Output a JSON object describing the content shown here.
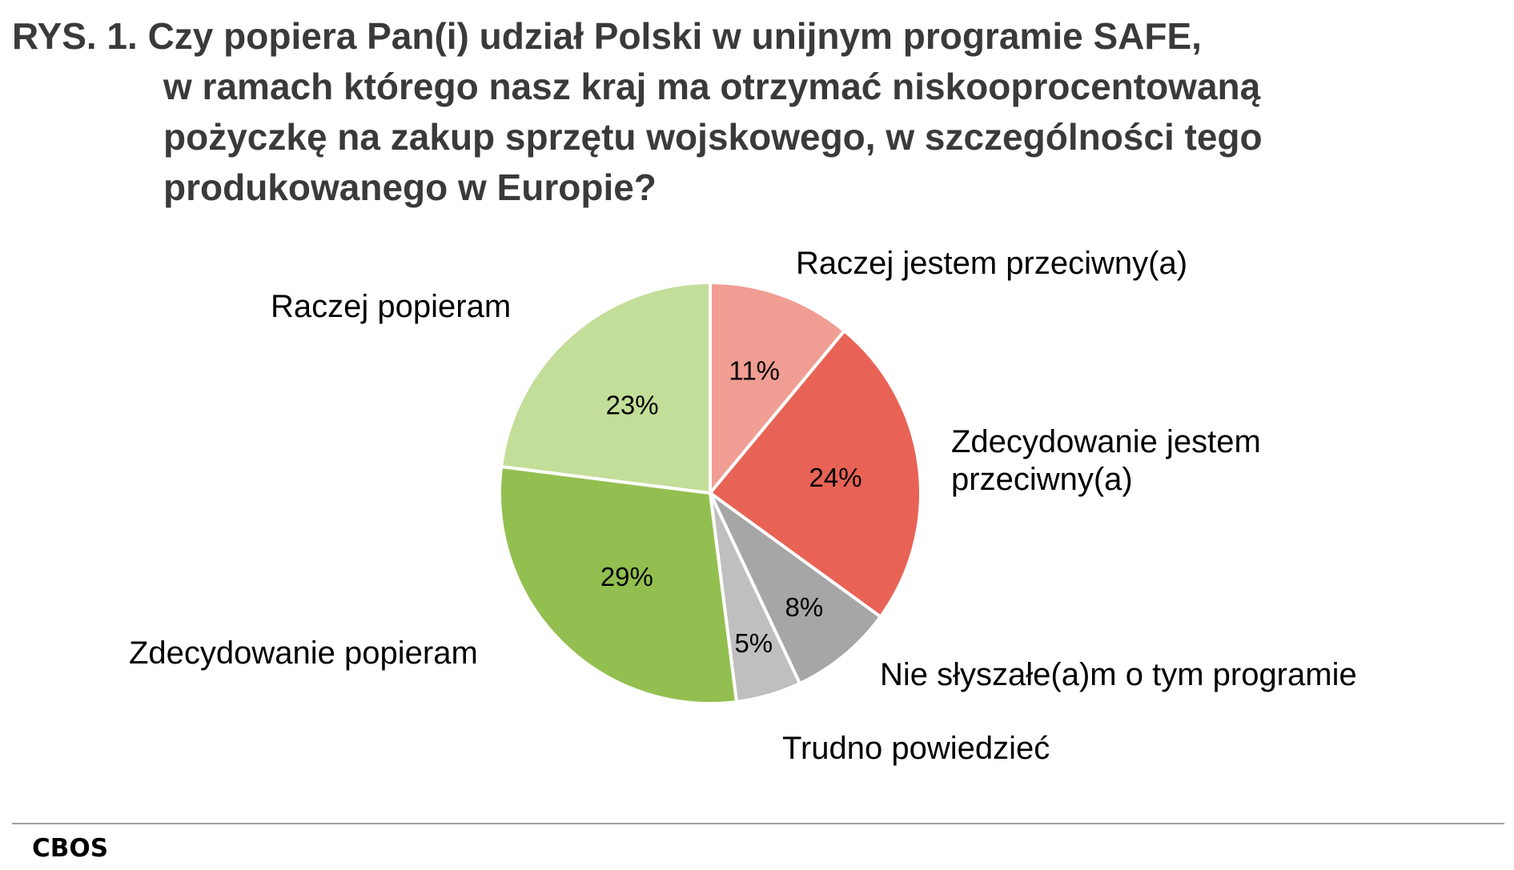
{
  "chart_data": {
    "type": "pie",
    "title_lines": [
      "RYS. 1. Czy popiera Pan(i) udział Polski w unijnym programie SAFE,",
      "w ramach którego nasz kraj ma otrzymać niskooprocentowaną",
      "pożyczkę na zakup sprzętu wojskowego, w szczególności tego",
      "produkowanego w Europie?"
    ],
    "unit": "%",
    "start": "12 o'clock, clockwise",
    "slices": [
      {
        "label": "Raczej jestem przeciwny(a)",
        "label_lines": [
          "Raczej jestem przeciwny(a)"
        ],
        "value": 11,
        "value_label": "11%",
        "color": "#f09e93"
      },
      {
        "label": "Zdecydowanie jestem przeciwny(a)",
        "label_lines": [
          "Zdecydowanie jestem",
          "przeciwny(a)"
        ],
        "value": 24,
        "value_label": "24%",
        "color": "#e86355"
      },
      {
        "label": "Nie słyszałe(a)m o tym programie",
        "label_lines": [
          "Nie słyszałe(a)m o tym programie"
        ],
        "value": 8,
        "value_label": "8%",
        "color": "#a6a6a6"
      },
      {
        "label": "Trudno powiedzieć",
        "label_lines": [
          "Trudno powiedzieć"
        ],
        "value": 5,
        "value_label": "5%",
        "color": "#bfbfbf"
      },
      {
        "label": "Zdecydowanie popieram",
        "label_lines": [
          "Zdecydowanie popieram"
        ],
        "value": 29,
        "value_label": "29%",
        "color": "#93bf50"
      },
      {
        "label": "Raczej popieram",
        "label_lines": [
          "Raczej popieram"
        ],
        "value": 23,
        "value_label": "23%",
        "color": "#c3de98"
      }
    ]
  },
  "footer": {
    "source_logo": "CBOS"
  }
}
